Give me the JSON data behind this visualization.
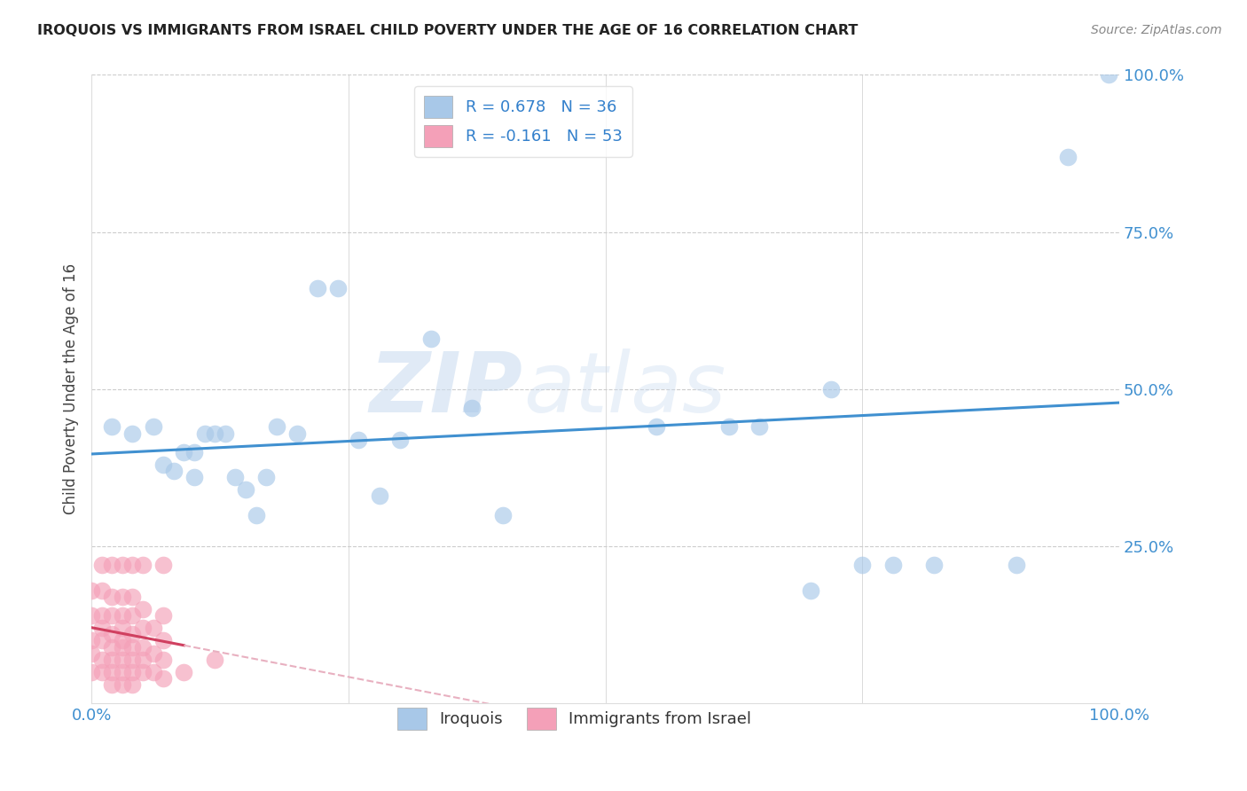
{
  "title": "IROQUOIS VS IMMIGRANTS FROM ISRAEL CHILD POVERTY UNDER THE AGE OF 16 CORRELATION CHART",
  "source": "Source: ZipAtlas.com",
  "ylabel": "Child Poverty Under the Age of 16",
  "legend_label_1": "Iroquois",
  "legend_label_2": "Immigrants from Israel",
  "R1": 0.678,
  "N1": 36,
  "R2": -0.161,
  "N2": 53,
  "color1": "#a8c8e8",
  "color2": "#f4a0b8",
  "line_color1": "#4090d0",
  "line_color2": "#d04060",
  "line_color2_dash": "#e8b0c0",
  "watermark_zip": "ZIP",
  "watermark_atlas": "atlas",
  "xlim": [
    0.0,
    1.0
  ],
  "ylim": [
    0.0,
    1.0
  ],
  "blue_x": [
    0.02,
    0.04,
    0.06,
    0.07,
    0.08,
    0.09,
    0.1,
    0.1,
    0.11,
    0.12,
    0.13,
    0.14,
    0.15,
    0.16,
    0.17,
    0.18,
    0.2,
    0.22,
    0.24,
    0.26,
    0.28,
    0.3,
    0.33,
    0.37,
    0.4,
    0.55,
    0.62,
    0.65,
    0.7,
    0.72,
    0.75,
    0.78,
    0.82,
    0.9,
    0.95,
    0.99
  ],
  "blue_y": [
    0.44,
    0.43,
    0.44,
    0.38,
    0.37,
    0.4,
    0.36,
    0.4,
    0.43,
    0.43,
    0.43,
    0.36,
    0.34,
    0.3,
    0.36,
    0.44,
    0.43,
    0.66,
    0.66,
    0.42,
    0.33,
    0.42,
    0.58,
    0.47,
    0.3,
    0.44,
    0.44,
    0.44,
    0.18,
    0.5,
    0.22,
    0.22,
    0.22,
    0.22,
    0.87,
    1.0
  ],
  "pink_x": [
    0.0,
    0.0,
    0.0,
    0.0,
    0.0,
    0.01,
    0.01,
    0.01,
    0.01,
    0.01,
    0.01,
    0.01,
    0.02,
    0.02,
    0.02,
    0.02,
    0.02,
    0.02,
    0.02,
    0.02,
    0.03,
    0.03,
    0.03,
    0.03,
    0.03,
    0.03,
    0.03,
    0.03,
    0.03,
    0.04,
    0.04,
    0.04,
    0.04,
    0.04,
    0.04,
    0.04,
    0.04,
    0.05,
    0.05,
    0.05,
    0.05,
    0.05,
    0.05,
    0.06,
    0.06,
    0.06,
    0.07,
    0.07,
    0.07,
    0.07,
    0.07,
    0.09,
    0.12
  ],
  "pink_y": [
    0.05,
    0.08,
    0.1,
    0.14,
    0.18,
    0.05,
    0.07,
    0.1,
    0.12,
    0.14,
    0.18,
    0.22,
    0.03,
    0.05,
    0.07,
    0.09,
    0.11,
    0.14,
    0.17,
    0.22,
    0.03,
    0.05,
    0.07,
    0.09,
    0.1,
    0.12,
    0.14,
    0.17,
    0.22,
    0.03,
    0.05,
    0.07,
    0.09,
    0.11,
    0.14,
    0.17,
    0.22,
    0.05,
    0.07,
    0.09,
    0.12,
    0.15,
    0.22,
    0.05,
    0.08,
    0.12,
    0.04,
    0.07,
    0.1,
    0.14,
    0.22,
    0.05,
    0.07
  ]
}
